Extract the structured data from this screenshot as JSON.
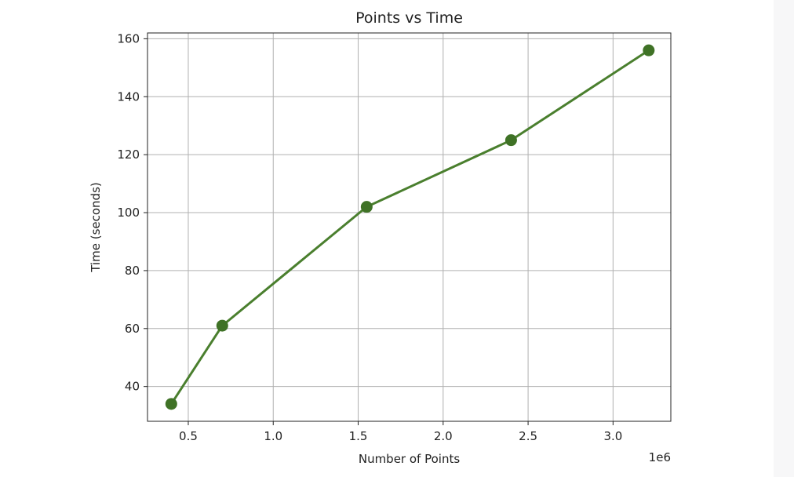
{
  "chart_data": {
    "type": "line",
    "title": "Points vs Time",
    "xlabel": "Number of Points",
    "ylabel": "Time (seconds)",
    "x_offset_label": "1e6",
    "x": [
      0.4,
      0.7,
      1.55,
      2.4,
      3.21
    ],
    "series": [
      {
        "values": [
          34,
          61,
          102,
          125,
          156
        ]
      }
    ],
    "xlim": [
      0.26,
      3.34
    ],
    "ylim": [
      28,
      162
    ],
    "xticks": [
      0.5,
      1.0,
      1.5,
      2.0,
      2.5,
      3.0
    ],
    "xtick_labels": [
      "0.5",
      "1.0",
      "1.5",
      "2.0",
      "2.5",
      "3.0"
    ],
    "yticks": [
      40,
      60,
      80,
      100,
      120,
      140,
      160
    ],
    "ytick_labels": [
      "40",
      "60",
      "80",
      "100",
      "120",
      "140",
      "160"
    ],
    "grid": true,
    "line_color": "#4a7f2e",
    "marker_color": "#3f7226"
  }
}
